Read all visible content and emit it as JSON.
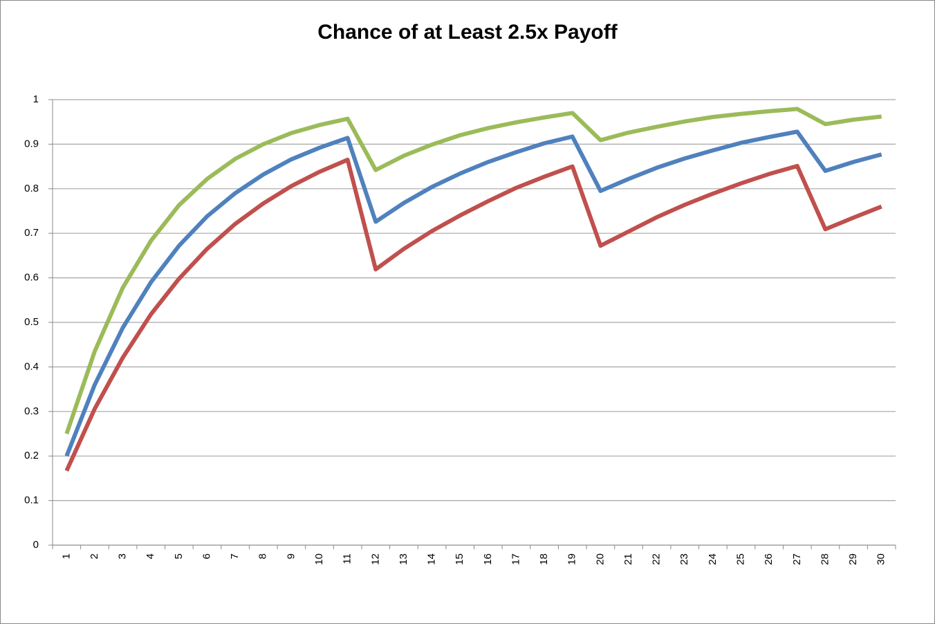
{
  "chart_data": {
    "type": "line",
    "title": "Chance of at Least 2.5x Payoff",
    "categories": [
      "1",
      "2",
      "3",
      "4",
      "5",
      "6",
      "7",
      "8",
      "9",
      "10",
      "11",
      "12",
      "13",
      "14",
      "15",
      "16",
      "17",
      "18",
      "19",
      "20",
      "21",
      "22",
      "23",
      "24",
      "25",
      "26",
      "27",
      "28",
      "29",
      "30"
    ],
    "series": [
      {
        "color": "#9bbb59",
        "values": [
          0.25,
          0.435,
          0.578,
          0.683,
          0.763,
          0.822,
          0.867,
          0.9,
          0.925,
          0.943,
          0.957,
          0.842,
          0.874,
          0.899,
          0.92,
          0.936,
          0.949,
          0.96,
          0.97,
          0.909,
          0.926,
          0.939,
          0.951,
          0.961,
          0.968,
          0.974,
          0.979,
          0.945,
          0.955,
          0.962
        ]
      },
      {
        "color": "#4f81bd",
        "values": [
          0.2,
          0.36,
          0.488,
          0.59,
          0.672,
          0.738,
          0.79,
          0.832,
          0.866,
          0.892,
          0.914,
          0.726,
          0.768,
          0.804,
          0.834,
          0.86,
          0.882,
          0.902,
          0.917,
          0.795,
          0.822,
          0.847,
          0.868,
          0.886,
          0.903,
          0.916,
          0.928,
          0.84,
          0.86,
          0.877
        ]
      },
      {
        "color": "#c0504d",
        "values": [
          0.167,
          0.306,
          0.421,
          0.518,
          0.598,
          0.665,
          0.721,
          0.767,
          0.806,
          0.838,
          0.865,
          0.619,
          0.665,
          0.705,
          0.74,
          0.772,
          0.802,
          0.827,
          0.85,
          0.672,
          0.704,
          0.736,
          0.764,
          0.789,
          0.812,
          0.833,
          0.851,
          0.709,
          0.735,
          0.76
        ]
      }
    ],
    "ylim": [
      0,
      1
    ],
    "yticks": [
      0,
      0.1,
      0.2,
      0.3,
      0.4,
      0.5,
      0.6,
      0.7,
      0.8,
      0.9,
      1
    ],
    "grid": true
  }
}
